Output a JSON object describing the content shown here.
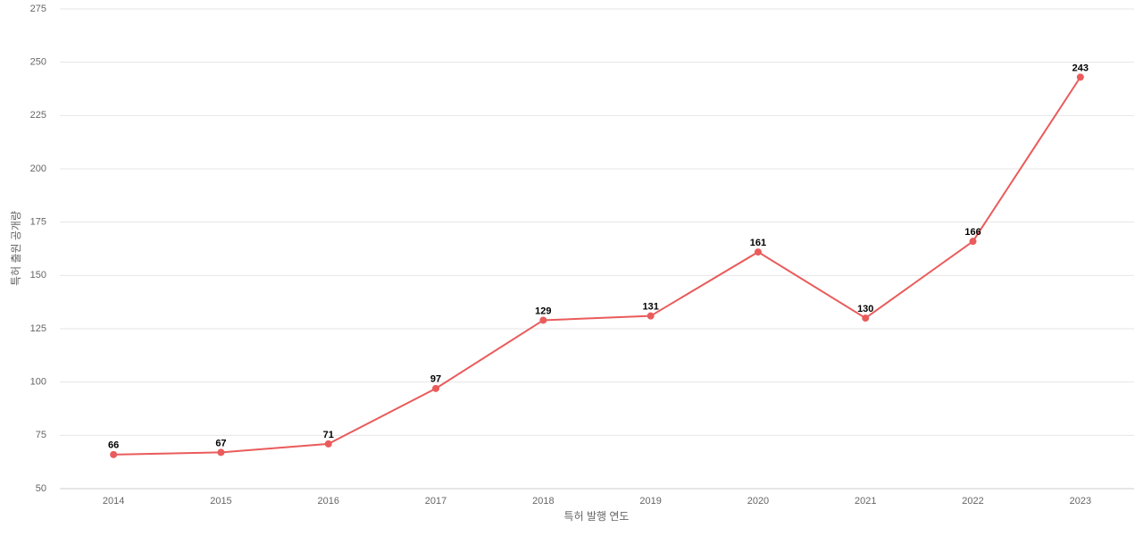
{
  "chart_data": {
    "type": "line",
    "x_label": "특허 발행 연도",
    "y_label": "특허 출원 공개량",
    "categories": [
      "2014",
      "2015",
      "2016",
      "2017",
      "2018",
      "2019",
      "2020",
      "2021",
      "2022",
      "2023"
    ],
    "series": [
      {
        "color": "#ea5b5b",
        "values": [
          66,
          67,
          71,
          97,
          129,
          131,
          161,
          130,
          166,
          243
        ]
      }
    ],
    "ylim": [
      50,
      275
    ],
    "yticks": [
      50,
      75,
      100,
      125,
      150,
      175,
      200,
      225,
      250,
      275
    ],
    "grid": true
  }
}
